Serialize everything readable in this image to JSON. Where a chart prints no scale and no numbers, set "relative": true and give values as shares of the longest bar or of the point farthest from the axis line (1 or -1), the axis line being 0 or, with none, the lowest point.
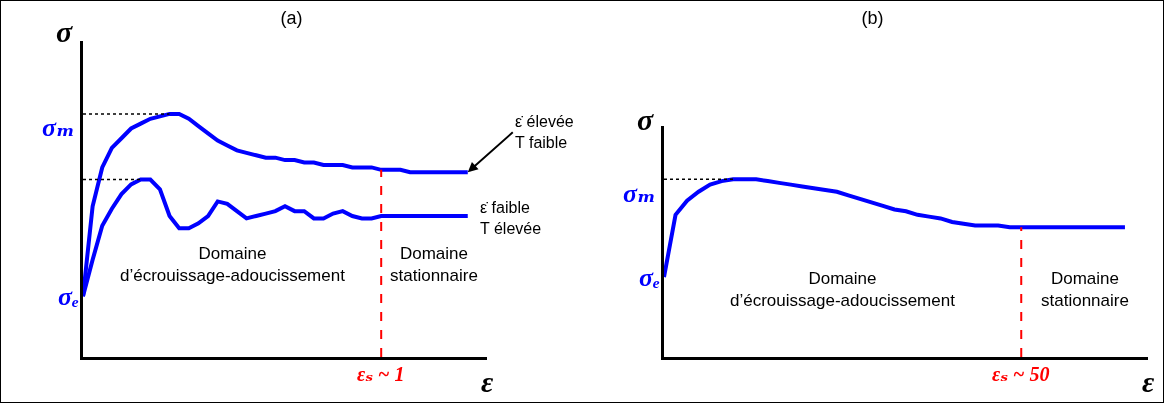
{
  "chart_data": [
    {
      "type": "line",
      "title": "(a)",
      "xlabel": "ε",
      "ylabel": "σ",
      "relative": true,
      "legend": false,
      "grid": false,
      "marker": "none",
      "line_style": "solid",
      "categories": [
        null,
        null,
        null,
        null,
        null,
        null,
        null,
        null,
        null,
        null,
        null,
        null,
        null,
        null,
        null,
        null,
        null,
        null,
        null,
        null,
        null,
        null,
        null,
        null,
        null,
        null,
        null,
        null,
        null,
        null,
        null,
        null,
        null,
        null,
        null,
        null,
        null,
        null,
        null,
        null,
        null
      ],
      "series": [
        {
          "name": "ε̇ élevée\nT faible",
          "color": "#0000ff",
          "values": [
            0.25,
            0.62,
            0.78,
            0.86,
            0.9,
            0.94,
            0.96,
            0.98,
            0.99,
            1.0,
            1.0,
            0.98,
            0.95,
            0.92,
            0.89,
            0.87,
            0.85,
            0.84,
            0.83,
            0.82,
            0.82,
            0.81,
            0.81,
            0.8,
            0.8,
            0.79,
            0.79,
            0.79,
            0.78,
            0.78,
            0.78,
            0.77,
            0.77,
            0.77,
            0.76,
            0.76,
            0.76,
            0.76,
            0.76,
            0.76,
            0.76
          ]
        },
        {
          "name": "ε̇ faible\nT élevée",
          "color": "#0000ff",
          "values": [
            0.25,
            0.4,
            0.54,
            0.61,
            0.67,
            0.71,
            0.73,
            0.73,
            0.69,
            0.58,
            0.53,
            0.53,
            0.55,
            0.58,
            0.64,
            0.63,
            0.6,
            0.57,
            0.58,
            0.59,
            0.6,
            0.62,
            0.6,
            0.6,
            0.57,
            0.57,
            0.59,
            0.6,
            0.58,
            0.57,
            0.57,
            0.58,
            0.58,
            0.58,
            0.58,
            0.58,
            0.58,
            0.58,
            0.58,
            0.58,
            0.58
          ]
        }
      ],
      "ref_lines": [
        {
          "axis": "y",
          "value": 1.0,
          "label": "σₘ",
          "color": "#000000",
          "line_style": "dotted"
        },
        {
          "axis": "y",
          "value": 0.73,
          "label": null,
          "color": "#000000",
          "line_style": "dotted"
        }
      ],
      "annotations": [
        "σₑ",
        "Domaine\nd’écrouissage-adoucissement",
        "Domaine\nstationnaire",
        "εₛ ~ 1"
      ]
    },
    {
      "type": "line",
      "title": "(b)",
      "xlabel": "ε",
      "ylabel": "σ",
      "relative": true,
      "legend": false,
      "grid": false,
      "marker": "none",
      "line_style": "solid",
      "categories": [
        null,
        null,
        null,
        null,
        null,
        null,
        null,
        null,
        null,
        null,
        null,
        null,
        null,
        null,
        null,
        null,
        null,
        null,
        null,
        null,
        null,
        null,
        null,
        null,
        null,
        null,
        null,
        null,
        null,
        null,
        null,
        null,
        null,
        null,
        null,
        null,
        null,
        null,
        null,
        null,
        null
      ],
      "series": [
        {
          "color": "#0000ff",
          "values": [
            0.45,
            0.8,
            0.88,
            0.93,
            0.97,
            0.99,
            1.0,
            1.0,
            1.0,
            0.99,
            0.98,
            0.97,
            0.96,
            0.95,
            0.94,
            0.93,
            0.91,
            0.89,
            0.87,
            0.85,
            0.83,
            0.82,
            0.8,
            0.79,
            0.78,
            0.76,
            0.75,
            0.74,
            0.74,
            0.74,
            0.73,
            0.73,
            0.73,
            0.73,
            0.73,
            0.73,
            0.73,
            0.73,
            0.73,
            0.73,
            0.73
          ]
        }
      ],
      "ref_lines": [
        {
          "axis": "y",
          "value": 1.0,
          "label": "σₘ",
          "color": "#000000",
          "line_style": "dotted"
        }
      ],
      "annotations": [
        "σₑ",
        "Domaine\nd’écrouissage-adoucissement",
        "Domaine\nstationnaire",
        "εₛ ~ 50"
      ]
    }
  ]
}
